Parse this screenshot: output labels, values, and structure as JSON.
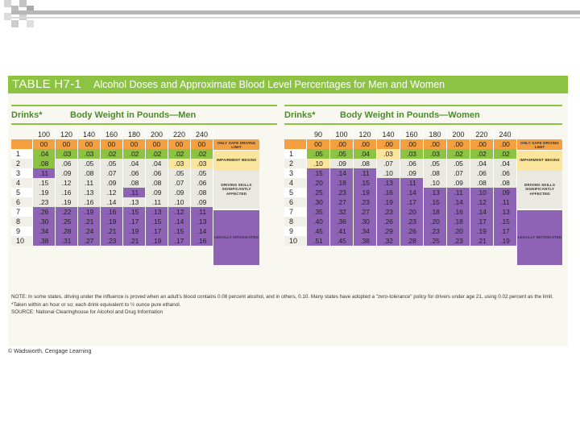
{
  "title": {
    "id": "TABLE H7-1",
    "text": "Alcohol Doses and Approximate Blood Level Percentages for Men and Women"
  },
  "men": {
    "drinks_header": "Drinks*",
    "weight_header": "Body Weight in Pounds—Men",
    "weights": [
      "100",
      "120",
      "140",
      "160",
      "180",
      "200",
      "220",
      "240"
    ],
    "subrow": [
      "00",
      "00",
      "00",
      "00",
      "00",
      "00",
      "00",
      "00"
    ],
    "rows": [
      [
        "1",
        ".04",
        ".03",
        ".03",
        ".02",
        ".02",
        ".02",
        ".02",
        ".02"
      ],
      [
        "2",
        ".08",
        ".06",
        ".05",
        ".05",
        ".04",
        ".04",
        ".03",
        ".03"
      ],
      [
        "3",
        ".11",
        ".09",
        ".08",
        ".07",
        ".06",
        ".06",
        ".05",
        ".05"
      ],
      [
        "4",
        ".15",
        ".12",
        ".11",
        ".09",
        ".08",
        ".08",
        ".07",
        ".06"
      ],
      [
        "5",
        ".19",
        ".16",
        ".13",
        ".12",
        ".11",
        ".09",
        ".09",
        ".08"
      ],
      [
        "6",
        ".23",
        ".19",
        ".16",
        ".14",
        ".13",
        ".11",
        ".10",
        ".09"
      ],
      [
        "7",
        ".26",
        ".22",
        ".19",
        ".16",
        ".15",
        ".13",
        ".12",
        ".11"
      ],
      [
        "8",
        ".30",
        ".25",
        ".21",
        ".19",
        ".17",
        ".15",
        ".14",
        ".13"
      ],
      [
        "9",
        ".34",
        ".28",
        ".24",
        ".21",
        ".19",
        ".17",
        ".15",
        ".14"
      ],
      [
        "10",
        ".38",
        ".31",
        ".27",
        ".23",
        ".21",
        ".19",
        ".17",
        ".16"
      ]
    ],
    "bands": [
      "ONLY SAFE DRIVING LIMIT",
      "IMPAIRMENT BEGINS",
      "DRIVING SKILLS SIGNIFICANTLY AFFECTED",
      "LEGALLY INTOXICATED"
    ]
  },
  "women": {
    "drinks_header": "Drinks*",
    "weight_header": "Body Weight in Pounds—Women",
    "weights": [
      "90",
      "100",
      "120",
      "140",
      "160",
      "180",
      "200",
      "220",
      "240"
    ],
    "subrow": [
      "00",
      ".00",
      ".00",
      ".00",
      ".00",
      ".00",
      ".00",
      ".00",
      ".00"
    ],
    "rows": [
      [
        "1",
        ".05",
        ".05",
        ".04",
        ".03",
        ".03",
        ".03",
        ".02",
        ".02",
        ".02"
      ],
      [
        "2",
        ".10",
        ".09",
        ".08",
        ".07",
        ".06",
        ".05",
        ".05",
        ".04",
        ".04"
      ],
      [
        "3",
        ".15",
        ".14",
        ".11",
        ".10",
        ".09",
        ".08",
        ".07",
        ".06",
        ".06"
      ],
      [
        "4",
        ".20",
        ".18",
        ".15",
        ".13",
        ".11",
        ".10",
        ".09",
        ".08",
        ".08"
      ],
      [
        "5",
        ".25",
        ".23",
        ".19",
        ".16",
        ".14",
        ".13",
        ".11",
        ".10",
        ".09"
      ],
      [
        "6",
        ".30",
        ".27",
        ".23",
        ".19",
        ".17",
        ".15",
        ".14",
        ".12",
        ".11"
      ],
      [
        "7",
        ".35",
        ".32",
        ".27",
        ".23",
        ".20",
        ".18",
        ".16",
        ".14",
        ".13"
      ],
      [
        "8",
        ".40",
        ".36",
        ".30",
        ".26",
        ".23",
        ".20",
        ".18",
        ".17",
        ".15"
      ],
      [
        "9",
        ".45",
        ".41",
        ".34",
        ".29",
        ".26",
        ".23",
        ".20",
        ".19",
        ".17"
      ],
      [
        "10",
        ".51",
        ".45",
        ".38",
        ".32",
        ".28",
        ".25",
        ".23",
        ".21",
        ".19"
      ]
    ],
    "bands": [
      "ONLY SAFE DRIVING LIMIT",
      "IMPAIRMENT BEGINS",
      "DRIVING SKILLS SIGNIFICANTLY AFFECTED",
      "LEGALLY INTOXICATED"
    ]
  },
  "colors": {
    "header_row": "#f5a040",
    "safe": "#8dc342",
    "impairment": "#fbe49b",
    "affected": "#e9e9e1",
    "intoxicated": "#8e63b5",
    "rule": "#8dc342"
  },
  "notes": {
    "note": "NOTE: In some states, driving under the influence is proved when an adult's blood contains 0.08 percent alcohol, and in others, 0.10. Many states have adopted a \"zero-tolerance\" policy for drivers under age 21, using 0.02 percent as the limit.",
    "footnote": "*Taken within an hour or so; each drink equivalent to ½ ounce pure ethanol.",
    "source": "SOURCE: National Clearinghouse for Alcohol and Drug Information"
  },
  "credit": "© Wadsworth, Cengage Learning"
}
